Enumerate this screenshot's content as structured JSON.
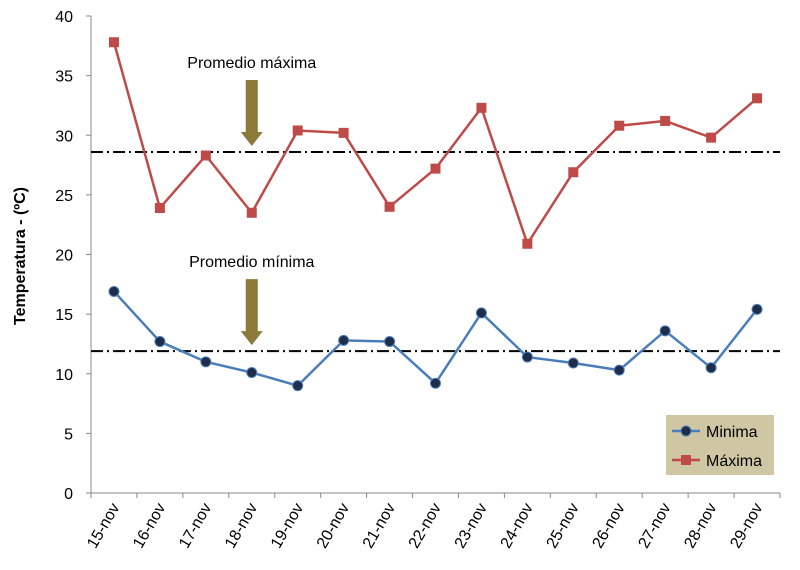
{
  "chart_data": {
    "type": "line",
    "title": "",
    "xlabel": "",
    "ylabel": "Temperatura - (ºC)",
    "categories": [
      "15-nov",
      "16-nov",
      "17-nov",
      "18-nov",
      "19-nov",
      "20-nov",
      "21-nov",
      "22-nov",
      "23-nov",
      "24-nov",
      "25-nov",
      "26-nov",
      "27-nov",
      "28-nov",
      "29-nov"
    ],
    "ylim": [
      0,
      40
    ],
    "yticks": [
      0,
      5,
      10,
      15,
      20,
      25,
      30,
      35,
      40
    ],
    "grid": false,
    "legend_position": "bottom-right",
    "series": [
      {
        "name": "Minima",
        "color": "#4a7ebb",
        "marker": "circle",
        "marker_color": "#1f2d4a",
        "values": [
          16.9,
          12.7,
          11.0,
          10.1,
          9.0,
          12.8,
          12.7,
          9.2,
          15.1,
          11.4,
          10.9,
          10.3,
          13.6,
          10.5,
          15.4
        ]
      },
      {
        "name": "Máxima",
        "color": "#be4b48",
        "marker": "square",
        "marker_color": "#be4b48",
        "values": [
          37.8,
          23.9,
          28.3,
          23.5,
          30.4,
          30.2,
          24.0,
          27.2,
          32.3,
          20.9,
          26.9,
          30.8,
          31.2,
          29.8,
          33.1
        ]
      }
    ],
    "reference_lines": [
      {
        "name": "Promedio máxima",
        "value": 28.6,
        "style": "dash-dot"
      },
      {
        "name": "Promedio mínima",
        "value": 11.9,
        "style": "dash-dot"
      }
    ],
    "annotations": [
      {
        "text": "Promedio máxima",
        "points_to": "18-nov",
        "arrow_color": "#8c7a3a"
      },
      {
        "text": "Promedio mínima",
        "points_to": "18-nov",
        "arrow_color": "#8c7a3a"
      }
    ],
    "legend_background": "#cfc6a3"
  }
}
